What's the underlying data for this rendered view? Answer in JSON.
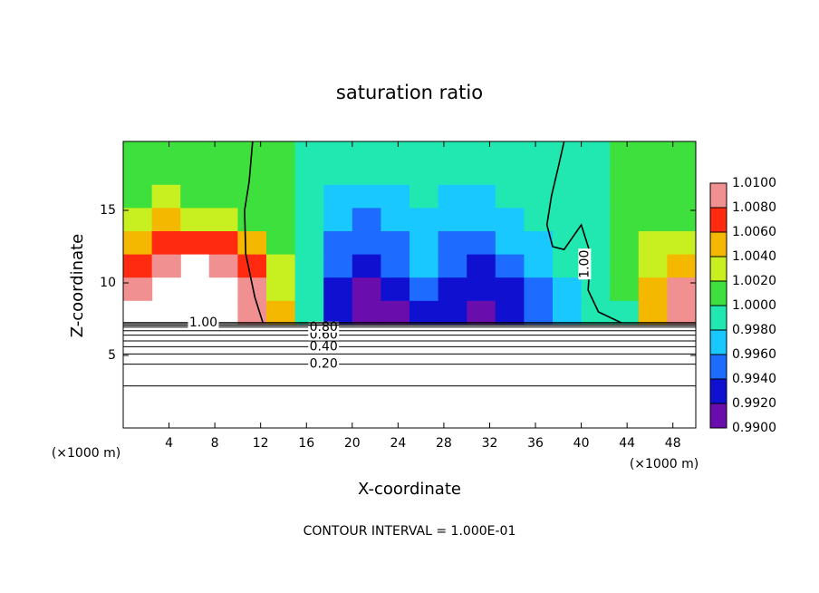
{
  "chart_data": {
    "type": "contour",
    "title": "saturation ratio",
    "xlabel": "X-coordinate",
    "ylabel": "Z-coordinate",
    "x_unit_label": "(×1000 m)",
    "footer": "CONTOUR INTERVAL = 1.000E-01",
    "xlim": [
      0,
      50
    ],
    "ylim": [
      0,
      19.75
    ],
    "xticks": [
      4,
      8,
      12,
      16,
      20,
      24,
      28,
      32,
      36,
      40,
      44,
      48
    ],
    "yticks": [
      5,
      10,
      15
    ],
    "field": {
      "x_edges": [
        0,
        2.5,
        5,
        7.5,
        10,
        12.5,
        15,
        17.5,
        20,
        22.5,
        25,
        27.5,
        30,
        32.5,
        35,
        37.5,
        40,
        42.5,
        45,
        47.5,
        50
      ],
      "z_edges": [
        7.2,
        8.8,
        10.4,
        12,
        13.6,
        15.2,
        16.8,
        18.4,
        19.75
      ],
      "values": [
        [
          null,
          null,
          null,
          null,
          1.008,
          1.004,
          0.9995,
          0.9925,
          0.991,
          0.9915,
          0.993,
          0.992,
          0.9915,
          0.993,
          0.994,
          0.996,
          0.999,
          0.9995,
          1.005,
          1.009
        ],
        [
          1.009,
          null,
          null,
          null,
          1.008,
          1.003,
          0.9985,
          0.9925,
          0.9915,
          0.993,
          0.9945,
          0.993,
          0.992,
          0.9935,
          0.995,
          0.9975,
          0.9995,
          1.0005,
          1.004,
          1.008
        ],
        [
          1.006,
          1.008,
          null,
          1.009,
          1.006,
          1.002,
          0.998,
          0.994,
          0.993,
          0.995,
          0.996,
          0.994,
          0.993,
          0.995,
          0.9965,
          0.9985,
          0.9995,
          1.001,
          1.003,
          1.005
        ],
        [
          1.005,
          1.006,
          1.007,
          1.006,
          1.004,
          1.001,
          0.998,
          0.9955,
          0.994,
          0.9955,
          0.997,
          0.9955,
          0.9945,
          0.996,
          0.9975,
          0.999,
          0.9995,
          1.001,
          1.002,
          1.002
        ],
        [
          1.003,
          1.004,
          1.003,
          1.002,
          1.0015,
          1.0005,
          0.998,
          0.996,
          0.995,
          0.9965,
          0.997,
          0.996,
          0.996,
          0.997,
          0.998,
          0.9992,
          0.9998,
          1.0005,
          1.0015,
          1.001
        ],
        [
          1.001,
          1.002,
          1.0015,
          1.001,
          1.001,
          1.0003,
          0.999,
          0.9975,
          0.997,
          0.9975,
          0.998,
          0.9975,
          0.9975,
          0.998,
          0.9985,
          0.9995,
          0.9998,
          1.0003,
          1.001,
          1.0005
        ],
        [
          1.0005,
          1.0008,
          1.0008,
          1.0006,
          1.0005,
          1.0002,
          0.9993,
          0.9985,
          0.998,
          0.9985,
          0.9988,
          0.9985,
          0.9985,
          0.9988,
          0.999,
          0.9995,
          0.9998,
          1.0002,
          1.0005,
          1.0003
        ],
        [
          1.0003,
          1.0005,
          1.0005,
          1.0004,
          1.0003,
          1.0001,
          0.9995,
          0.999,
          0.9988,
          0.999,
          0.9992,
          0.999,
          0.999,
          0.9992,
          0.9994,
          0.9996,
          0.9998,
          1.0001,
          1.0003,
          1.0002
        ]
      ]
    },
    "colorbar": {
      "lim": [
        0.99,
        1.01
      ],
      "colors": [
        "#6a0dad",
        "#1010d0",
        "#1e6cff",
        "#18c8ff",
        "#20e8b0",
        "#3ee03e",
        "#c8f020",
        "#f5b800",
        "#ff2a10",
        "#f09090"
      ],
      "ticks": [
        {
          "value": 0.99,
          "label": "0.9900"
        },
        {
          "value": 0.992,
          "label": "0.9920"
        },
        {
          "value": 0.994,
          "label": "0.9940"
        },
        {
          "value": 0.996,
          "label": "0.9960"
        },
        {
          "value": 0.998,
          "label": "0.9980"
        },
        {
          "value": 1.0,
          "label": "1.0000"
        },
        {
          "value": 1.002,
          "label": "1.0020"
        },
        {
          "value": 1.004,
          "label": "1.0040"
        },
        {
          "value": 1.006,
          "label": "1.0060"
        },
        {
          "value": 1.008,
          "label": "1.0080"
        },
        {
          "value": 1.01,
          "label": "1.0100"
        }
      ]
    },
    "contours": [
      {
        "level": 0.1,
        "z": 2.9
      },
      {
        "level": 0.2,
        "z": 4.4,
        "label": "0.20"
      },
      {
        "level": 0.3,
        "z": 5.1
      },
      {
        "level": 0.4,
        "z": 5.6,
        "label": "0.40"
      },
      {
        "level": 0.5,
        "z": 6.0
      },
      {
        "level": 0.6,
        "z": 6.4,
        "label": "0.60"
      },
      {
        "level": 0.7,
        "z": 6.7
      },
      {
        "level": 0.8,
        "z": 6.95,
        "label": "0.80"
      },
      {
        "level": 0.9,
        "z": 7.1
      },
      {
        "level": 1.0,
        "z": 7.25,
        "label": "1.00"
      }
    ],
    "contour_lines": [
      {
        "level": 1.0,
        "x": [
          11.3,
          11.0,
          10.6,
          10.7,
          11.5,
          12.2
        ],
        "z": [
          19.75,
          17,
          15,
          12,
          9,
          7.25
        ]
      },
      {
        "level": 1.0,
        "label": "1.00",
        "x": [
          38.5,
          38.0,
          37.4,
          37.0,
          37.5,
          38.5,
          40.0,
          40.8,
          40.6,
          41.5,
          43.5
        ],
        "z": [
          19.75,
          18,
          16,
          14,
          12.5,
          12.3,
          14,
          12,
          9.5,
          8,
          7.25
        ]
      }
    ]
  }
}
